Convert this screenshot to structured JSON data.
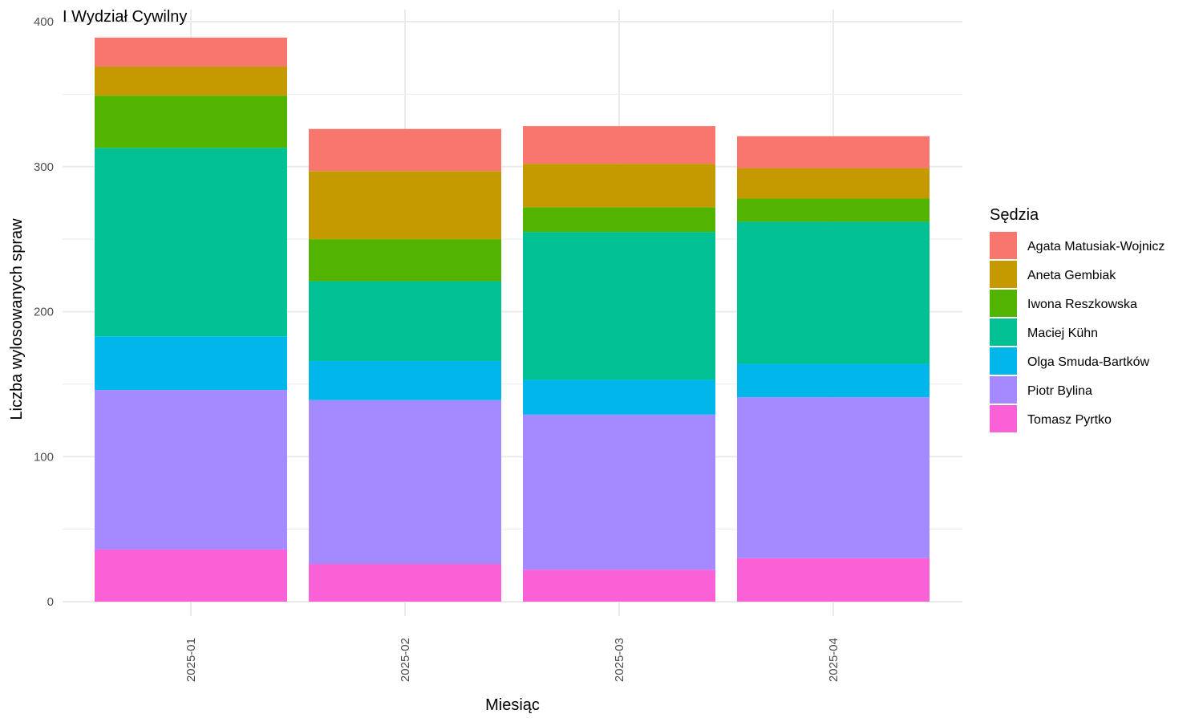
{
  "chart_data": {
    "type": "bar",
    "stacked": true,
    "title": "I Wydział Cywilny",
    "xlabel": "Miesiąc",
    "ylabel": "Liczba wylosowanych spraw",
    "categories": [
      "2025-01",
      "2025-02",
      "2025-03",
      "2025-04"
    ],
    "ylim": [
      0,
      400
    ],
    "yticks": [
      0,
      100,
      200,
      300,
      400
    ],
    "grid": true,
    "legend": {
      "title": "Sędzia",
      "position": "right"
    },
    "series": [
      {
        "name": "Agata Matusiak-Wojnicz",
        "color": "#F8766D",
        "values": [
          20,
          29,
          26,
          22
        ]
      },
      {
        "name": "Aneta Gembiak",
        "color": "#C49A00",
        "values": [
          20,
          47,
          30,
          21
        ]
      },
      {
        "name": "Iwona Reszkowska",
        "color": "#53B400",
        "values": [
          36,
          29,
          17,
          16
        ]
      },
      {
        "name": "Maciej Kühn",
        "color": "#00C094",
        "values": [
          130,
          55,
          102,
          98
        ]
      },
      {
        "name": "Olga Smuda-Bartków",
        "color": "#00B6EB",
        "values": [
          37,
          27,
          24,
          23
        ]
      },
      {
        "name": "Piotr Bylina",
        "color": "#A58AFF",
        "values": [
          110,
          113,
          107,
          111
        ]
      },
      {
        "name": "Tomasz Pyrtko",
        "color": "#FB61D7",
        "values": [
          36,
          26,
          22,
          30
        ]
      }
    ]
  }
}
